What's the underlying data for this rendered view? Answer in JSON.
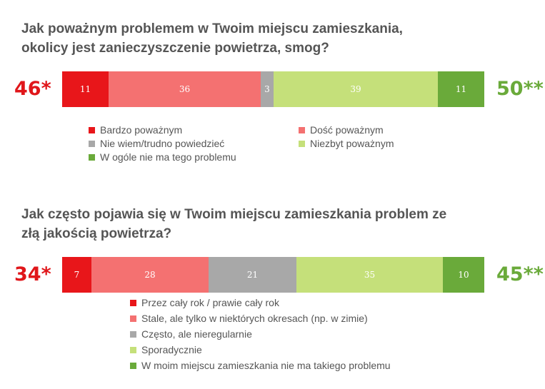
{
  "chart_data": [
    {
      "type": "bar",
      "orientation": "horizontal-stacked",
      "title_lines": [
        "Jak poważnym problemem w Twoim miejscu zamieszkania,",
        "okolicy jest zanieczyszczenie powietrza, smog?"
      ],
      "series": [
        {
          "name": "Bardzo poważnym",
          "value": 11,
          "color": "#e8161a"
        },
        {
          "name": "Dość poważnym",
          "value": 36,
          "color": "#f47171"
        },
        {
          "name": "Nie wiem/trudno powiedzieć",
          "value": 3,
          "color": "#a8a8a8"
        },
        {
          "name": "Niezbyt poważnym",
          "value": 39,
          "color": "#c5e07a"
        },
        {
          "name": "W ogóle nie ma tego problemu",
          "value": 11,
          "color": "#6aaa3a"
        }
      ],
      "left_total": "46*",
      "right_total": "50**"
    },
    {
      "type": "bar",
      "orientation": "horizontal-stacked",
      "title_lines": [
        "Jak często pojawia się w Twoim miejscu zamieszkania problem ze",
        "złą jakością powietrza?"
      ],
      "series": [
        {
          "name": "Przez cały rok / prawie cały rok",
          "value": 7,
          "color": "#e8161a"
        },
        {
          "name": "Stale, ale tylko w niektórych okresach (np. w zimie)",
          "value": 28,
          "color": "#f47171"
        },
        {
          "name": "Często, ale nieregularnie",
          "value": 21,
          "color": "#a8a8a8"
        },
        {
          "name": "Sporadycznie",
          "value": 35,
          "color": "#c5e07a"
        },
        {
          "name": "W moim miejscu zamieszkania nie ma takiego problemu",
          "value": 10,
          "color": "#6aaa3a"
        }
      ],
      "left_total": "34*",
      "right_total": "45**"
    }
  ]
}
